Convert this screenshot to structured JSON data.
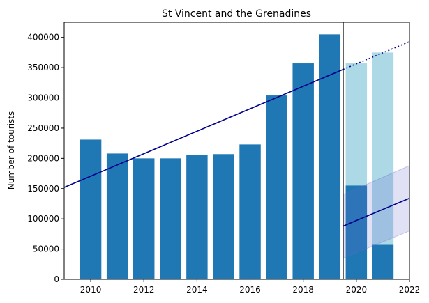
{
  "chart_data": {
    "type": "bar",
    "title": "St Vincent and the Grenadines",
    "xlabel": "",
    "ylabel": "Number of tourists",
    "xlim": [
      2009,
      2022
    ],
    "ylim": [
      0,
      425000
    ],
    "grid": false,
    "x_ticks": [
      2010,
      2012,
      2014,
      2016,
      2018,
      2020,
      2022
    ],
    "y_ticks": [
      0,
      50000,
      100000,
      150000,
      200000,
      250000,
      300000,
      350000,
      400000
    ],
    "x_tick_labels": [
      "2010",
      "2012",
      "2014",
      "2016",
      "2018",
      "2020",
      "2022"
    ],
    "y_tick_labels": [
      "0",
      "50000",
      "100000",
      "150000",
      "200000",
      "250000",
      "300000",
      "350000",
      "400000"
    ],
    "series": [
      {
        "role": "actual",
        "color": "#1f77b4",
        "x": [
          2010,
          2011,
          2012,
          2013,
          2014,
          2015,
          2016,
          2017,
          2018,
          2019,
          2020,
          2021
        ],
        "values": [
          231000,
          208000,
          200000,
          200000,
          205000,
          207000,
          223000,
          304000,
          357000,
          405000,
          155000,
          57000
        ]
      },
      {
        "role": "expected",
        "color": "#add8e6",
        "x": [
          2020,
          2021
        ],
        "values": [
          357000,
          375000
        ]
      }
    ],
    "trend_pre": {
      "color": "#00008b",
      "x": [
        2009,
        2019.5
      ],
      "y": [
        152000,
        347000
      ]
    },
    "trend_pre_extension": {
      "color": "#00008b",
      "style": "dotted",
      "x": [
        2019.5,
        2022
      ],
      "y": [
        347000,
        393000
      ]
    },
    "trend_post": {
      "color": "#00008b",
      "x": [
        2019.5,
        2022
      ],
      "y": [
        88000,
        134000
      ]
    },
    "trend_post_band": {
      "color": "#6a6acd",
      "opacity": 0.2,
      "x": [
        2019.5,
        2022
      ],
      "upper": [
        140000,
        188000
      ],
      "lower": [
        35000,
        80000
      ]
    },
    "break_line": {
      "color": "#000000",
      "x": 2019.5
    }
  }
}
